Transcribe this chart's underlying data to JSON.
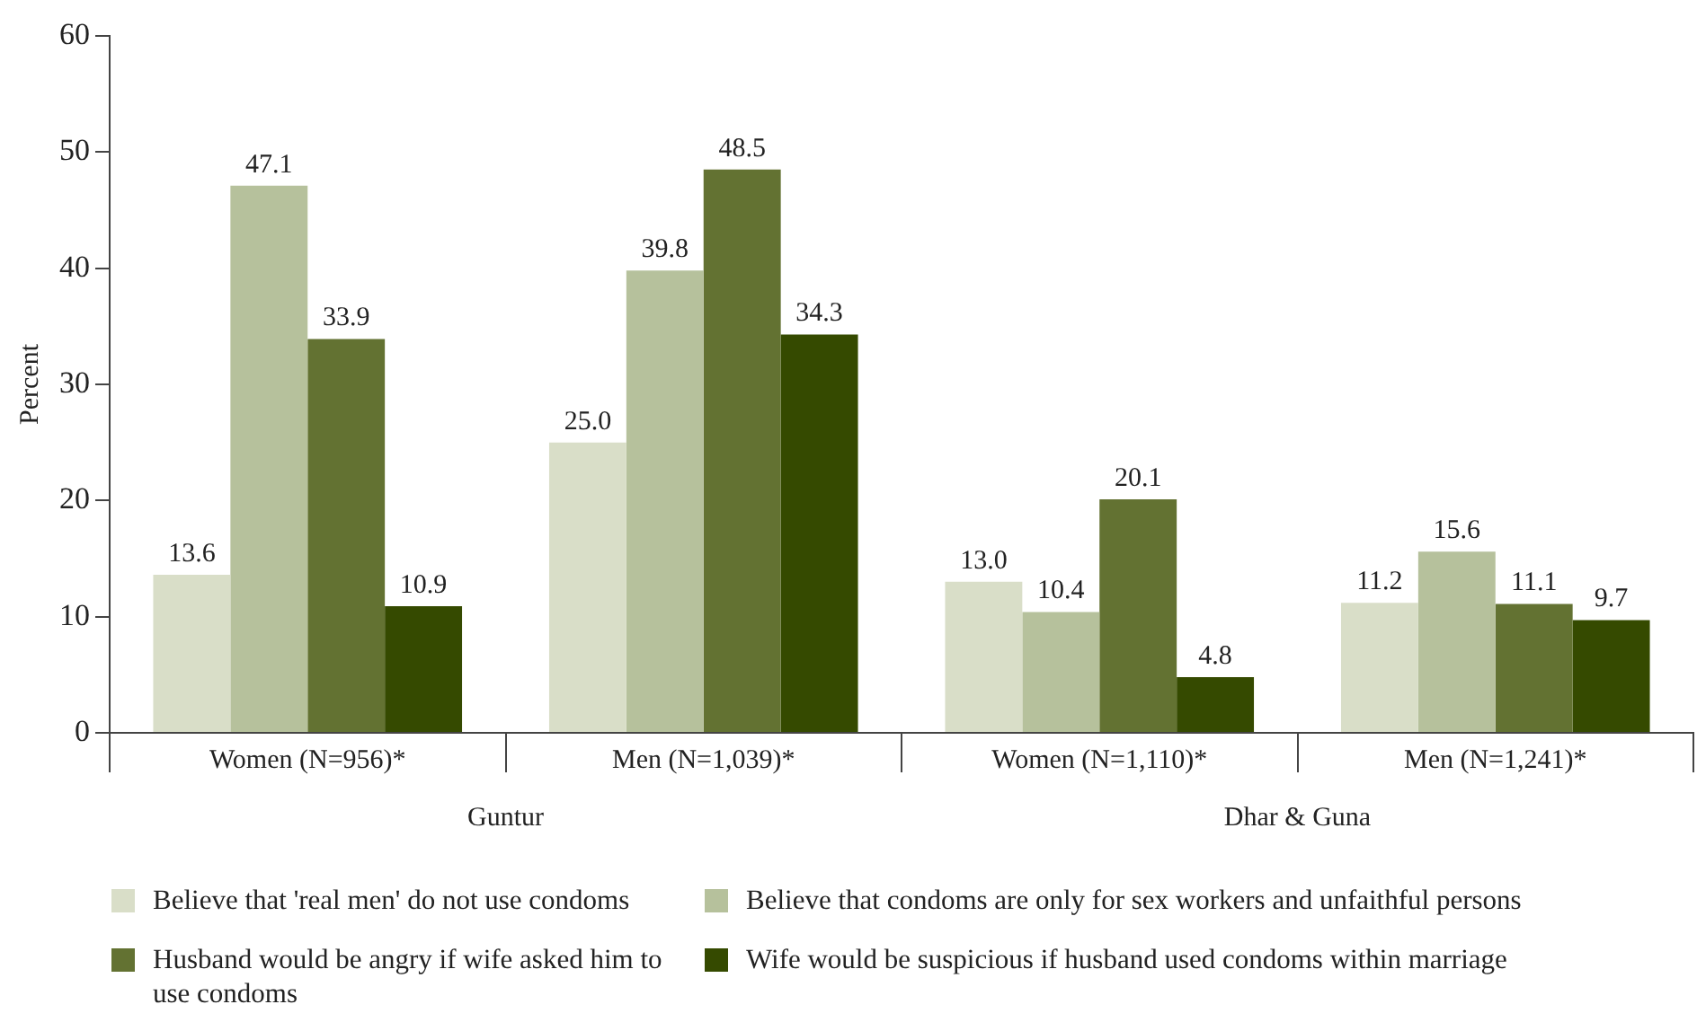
{
  "chart_data": {
    "type": "bar",
    "categories": [
      "Women (N=956)*",
      "Men (N=1,039)*",
      "Women (N=1,110)*",
      "Men (N=1,241)*"
    ],
    "series": [
      {
        "name": "Believe that 'real men' do not use condoms",
        "color": "#d9dec8",
        "values": [
          13.6,
          25.0,
          13.0,
          11.2
        ],
        "value_labels": [
          "13.6",
          "25.0",
          "13.0",
          "11.2"
        ]
      },
      {
        "name": "Believe that condoms are only for sex workers and unfaithful persons",
        "color": "#b6c19c",
        "values": [
          47.1,
          39.8,
          10.4,
          15.6
        ]
      },
      {
        "name": "Husband would be angry if wife asked him to use condoms",
        "color": "#637232",
        "values": [
          33.9,
          48.5,
          20.1,
          11.1
        ]
      },
      {
        "name": "Wife would be suspicious if husband used condoms within marriage",
        "color": "#354a00",
        "values": [
          10.9,
          34.3,
          4.8,
          9.7
        ]
      }
    ],
    "ylabel": "Percent",
    "ylim": [
      0,
      60
    ],
    "yticks": [
      0,
      10,
      20,
      30,
      40,
      50,
      60
    ],
    "annotations": [
      "Guntur",
      "Dhar & Guna"
    ],
    "data_labels": true,
    "grid": false,
    "legend": "bottom"
  }
}
